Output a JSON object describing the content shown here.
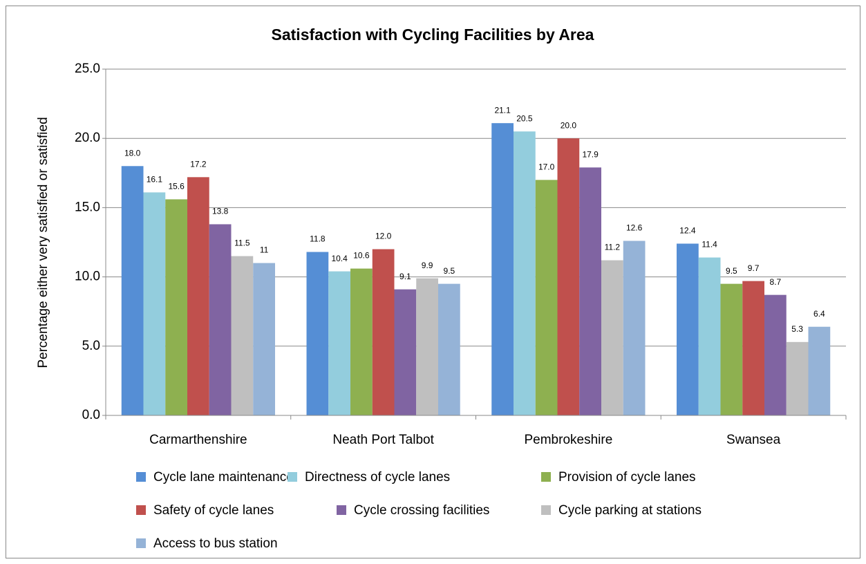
{
  "chart_data": {
    "type": "bar",
    "title": "Satisfaction with Cycling Facilities by Area",
    "y_label": "Percentage either very satisfied or satisfied",
    "categories": [
      "Carmarthenshire",
      "Neath Port Talbot",
      "Pembrokeshire",
      "Swansea"
    ],
    "series": [
      {
        "name": "Cycle lane maintenance",
        "color": "#558ed5",
        "values": [
          18.0,
          11.8,
          21.1,
          12.4
        ],
        "value_labels": [
          "18.0",
          "11.8",
          "21.1",
          "12.4"
        ]
      },
      {
        "name": "Directness of cycle lanes",
        "color": "#93cddd",
        "values": [
          16.1,
          10.4,
          20.5,
          11.4
        ],
        "value_labels": [
          "16.1",
          "10.4",
          "20.5",
          "11.4"
        ]
      },
      {
        "name": "Provision of cycle lanes",
        "color": "#8eb050",
        "values": [
          15.6,
          10.6,
          17.0,
          9.5
        ],
        "value_labels": [
          "15.6",
          "10.6",
          "17.0",
          "9.5"
        ]
      },
      {
        "name": "Safety of cycle lanes",
        "color": "#c0504d",
        "values": [
          17.2,
          12.0,
          20.0,
          9.7
        ],
        "value_labels": [
          "17.2",
          "12.0",
          "20.0",
          "9.7"
        ]
      },
      {
        "name": "Cycle crossing facilities",
        "color": "#8064a2",
        "values": [
          13.8,
          9.1,
          17.9,
          8.7
        ],
        "value_labels": [
          "13.8",
          "9.1",
          "17.9",
          "8.7"
        ]
      },
      {
        "name": "Cycle parking at stations",
        "color": "#bfbfbf",
        "values": [
          11.5,
          9.9,
          11.2,
          5.3
        ],
        "value_labels": [
          "11.5",
          "9.9",
          "11.2",
          "5.3"
        ]
      },
      {
        "name": "Access to bus station",
        "color": "#95b3d7",
        "values": [
          11,
          9.5,
          12.6,
          6.4
        ],
        "value_labels": [
          "11",
          "9.5",
          "12.6",
          "6.4"
        ]
      }
    ],
    "ylim": [
      0,
      25
    ],
    "yticks": [
      {
        "value": 0,
        "label": "0.0"
      },
      {
        "value": 5,
        "label": "5.0"
      },
      {
        "value": 10,
        "label": "10.0"
      },
      {
        "value": 15,
        "label": "15.0"
      },
      {
        "value": 20,
        "label": "20.0"
      },
      {
        "value": 25,
        "label": "25.0"
      }
    ],
    "grid": true,
    "legend": "bottom"
  }
}
